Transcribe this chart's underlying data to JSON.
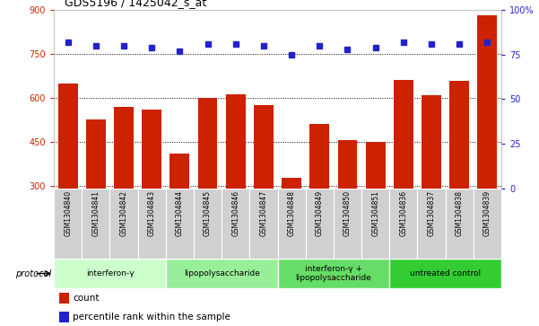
{
  "title": "GDS5196 / 1425042_s_at",
  "samples": [
    "GSM1304840",
    "GSM1304841",
    "GSM1304842",
    "GSM1304843",
    "GSM1304844",
    "GSM1304845",
    "GSM1304846",
    "GSM1304847",
    "GSM1304848",
    "GSM1304849",
    "GSM1304850",
    "GSM1304851",
    "GSM1304836",
    "GSM1304837",
    "GSM1304838",
    "GSM1304839"
  ],
  "counts": [
    648,
    525,
    570,
    560,
    410,
    598,
    610,
    575,
    325,
    510,
    455,
    448,
    660,
    608,
    658,
    880
  ],
  "percentile_ranks": [
    82,
    80,
    80,
    79,
    77,
    81,
    81,
    80,
    75,
    80,
    78,
    79,
    82,
    81,
    81,
    82
  ],
  "ylim_left": [
    290,
    900
  ],
  "ylim_right": [
    0,
    100
  ],
  "yticks_left": [
    300,
    450,
    600,
    750,
    900
  ],
  "yticks_right": [
    0,
    25,
    50,
    75,
    100
  ],
  "bar_color": "#cc2200",
  "dot_color": "#2222cc",
  "protocol_groups": [
    {
      "label": "interferon-γ",
      "start": 0,
      "end": 4,
      "color": "#ccffcc"
    },
    {
      "label": "lipopolysaccharide",
      "start": 4,
      "end": 8,
      "color": "#99ee99"
    },
    {
      "label": "interferon-γ +\nlipopolysaccharide",
      "start": 8,
      "end": 12,
      "color": "#66dd66"
    },
    {
      "label": "untreated control",
      "start": 12,
      "end": 16,
      "color": "#33cc33"
    }
  ],
  "legend_count_label": "count",
  "legend_percentile_label": "percentile rank within the sample",
  "protocol_label": "protocol",
  "bg_color": "#ffffff",
  "tick_area_color": "#d0d0d0"
}
